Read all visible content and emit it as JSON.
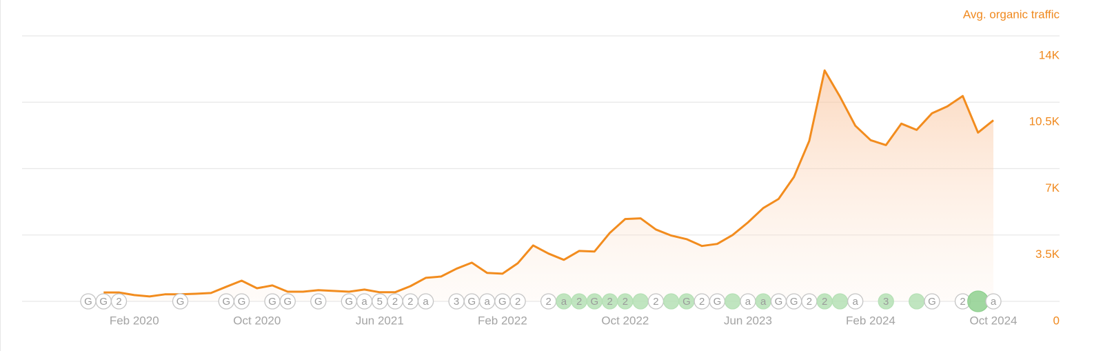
{
  "chart_data": {
    "type": "area-line",
    "y_title": "Avg. organic traffic",
    "color": "#f28c1e",
    "x": [
      "2019-12",
      "2020-01",
      "2020-02",
      "2020-03",
      "2020-04",
      "2020-05",
      "2020-06",
      "2020-07",
      "2020-08",
      "2020-09",
      "2020-10",
      "2020-11",
      "2020-12",
      "2021-01",
      "2021-02",
      "2021-03",
      "2021-04",
      "2021-05",
      "2021-06",
      "2021-07",
      "2021-08",
      "2021-09",
      "2021-10",
      "2021-11",
      "2021-12",
      "2022-01",
      "2022-02",
      "2022-03",
      "2022-04",
      "2022-05",
      "2022-06",
      "2022-07",
      "2022-08",
      "2022-09",
      "2022-10",
      "2022-11",
      "2022-12",
      "2023-01",
      "2023-02",
      "2023-03",
      "2023-04",
      "2023-05",
      "2023-06",
      "2023-07",
      "2023-08",
      "2023-09",
      "2023-10",
      "2023-11",
      "2023-12",
      "2024-01",
      "2024-02",
      "2024-03",
      "2024-04",
      "2024-05",
      "2024-06",
      "2024-07",
      "2024-08",
      "2024-09",
      "2024-10"
    ],
    "values": [
      470,
      470,
      330,
      260,
      370,
      370,
      400,
      440,
      770,
      1090,
      690,
      840,
      510,
      510,
      590,
      550,
      510,
      620,
      480,
      480,
      800,
      1240,
      1310,
      1720,
      2040,
      1500,
      1460,
      2010,
      2950,
      2520,
      2190,
      2660,
      2630,
      3610,
      4340,
      4380,
      3790,
      3470,
      3280,
      2920,
      3030,
      3500,
      4160,
      4920,
      5400,
      6560,
      8460,
      12180,
      10790,
      9260,
      8500,
      8240,
      9370,
      9040,
      9920,
      10280,
      10830,
      8900,
      9550
    ],
    "xlim": [
      "2019-11",
      "2024-10"
    ],
    "xticks": [
      {
        "value": "2020-02",
        "label": "Feb 2020"
      },
      {
        "value": "2020-10",
        "label": "Oct 2020"
      },
      {
        "value": "2021-06",
        "label": "Jun 2021"
      },
      {
        "value": "2022-02",
        "label": "Feb 2022"
      },
      {
        "value": "2022-10",
        "label": "Oct 2022"
      },
      {
        "value": "2023-06",
        "label": "Jun 2023"
      },
      {
        "value": "2024-02",
        "label": "Feb 2024"
      },
      {
        "value": "2024-10",
        "label": "Oct 2024"
      }
    ],
    "ylim": [
      0,
      14000
    ],
    "yticks": [
      0,
      {
        "value": 3500,
        "label": "3.5K"
      },
      {
        "value": 7000,
        "label": "7K"
      },
      {
        "value": 10500,
        "label": "10.5K"
      },
      {
        "value": 14000,
        "label": "14K"
      }
    ],
    "grid": true,
    "markers": [
      {
        "x": "2019-11",
        "label": "G"
      },
      {
        "x": "2019-12",
        "label": "G"
      },
      {
        "x": "2020-01",
        "label": "2"
      },
      {
        "x": "2020-05",
        "label": "G"
      },
      {
        "x": "2020-08",
        "label": "G"
      },
      {
        "x": "2020-09",
        "label": "G"
      },
      {
        "x": "2020-11",
        "label": "G"
      },
      {
        "x": "2020-12",
        "label": "G"
      },
      {
        "x": "2021-02",
        "label": "G"
      },
      {
        "x": "2021-04",
        "label": "G"
      },
      {
        "x": "2021-05",
        "label": "a"
      },
      {
        "x": "2021-06",
        "label": "5"
      },
      {
        "x": "2021-07",
        "label": "2"
      },
      {
        "x": "2021-08",
        "label": "2"
      },
      {
        "x": "2021-09",
        "label": "a"
      },
      {
        "x": "2021-11",
        "label": "3"
      },
      {
        "x": "2021-12",
        "label": "G"
      },
      {
        "x": "2022-01",
        "label": "a"
      },
      {
        "x": "2022-02",
        "label": "G"
      },
      {
        "x": "2022-03",
        "label": "2"
      },
      {
        "x": "2022-05",
        "label": "2"
      },
      {
        "x": "2022-06",
        "label": "a",
        "color": "#b5e0b5"
      },
      {
        "x": "2022-07",
        "label": "2",
        "color": "#b5e0b5"
      },
      {
        "x": "2022-08",
        "label": "G",
        "color": "#b5e0b5"
      },
      {
        "x": "2022-09",
        "label": "2",
        "color": "#b5e0b5"
      },
      {
        "x": "2022-10",
        "label": "2",
        "color": "#b5e0b5"
      },
      {
        "x": "2022-11",
        "label": null,
        "color": "#b5e0b5"
      },
      {
        "x": "2022-12",
        "label": "2"
      },
      {
        "x": "2023-01",
        "label": null,
        "color": "#b5e0b5"
      },
      {
        "x": "2023-02",
        "label": "G",
        "color": "#b5e0b5"
      },
      {
        "x": "2023-03",
        "label": "2"
      },
      {
        "x": "2023-04",
        "label": "G"
      },
      {
        "x": "2023-05",
        "label": null,
        "color": "#b5e0b5"
      },
      {
        "x": "2023-06",
        "label": "a"
      },
      {
        "x": "2023-07",
        "label": "a",
        "color": "#b5e0b5"
      },
      {
        "x": "2023-08",
        "label": "G"
      },
      {
        "x": "2023-09",
        "label": "G"
      },
      {
        "x": "2023-10",
        "label": "2"
      },
      {
        "x": "2023-11",
        "label": "2",
        "color": "#b5e0b5"
      },
      {
        "x": "2023-12",
        "label": null,
        "color": "#b5e0b5"
      },
      {
        "x": "2024-01",
        "label": "a"
      },
      {
        "x": "2024-03",
        "label": "3",
        "color": "#b5e0b5"
      },
      {
        "x": "2024-05",
        "label": null,
        "color": "#b5e0b5"
      },
      {
        "x": "2024-06",
        "label": "G"
      },
      {
        "x": "2024-08",
        "label": "2"
      },
      {
        "x": "2024-09",
        "label": null,
        "color": "#8fd08f"
      },
      {
        "x": "2024-10",
        "label": "a"
      }
    ]
  }
}
